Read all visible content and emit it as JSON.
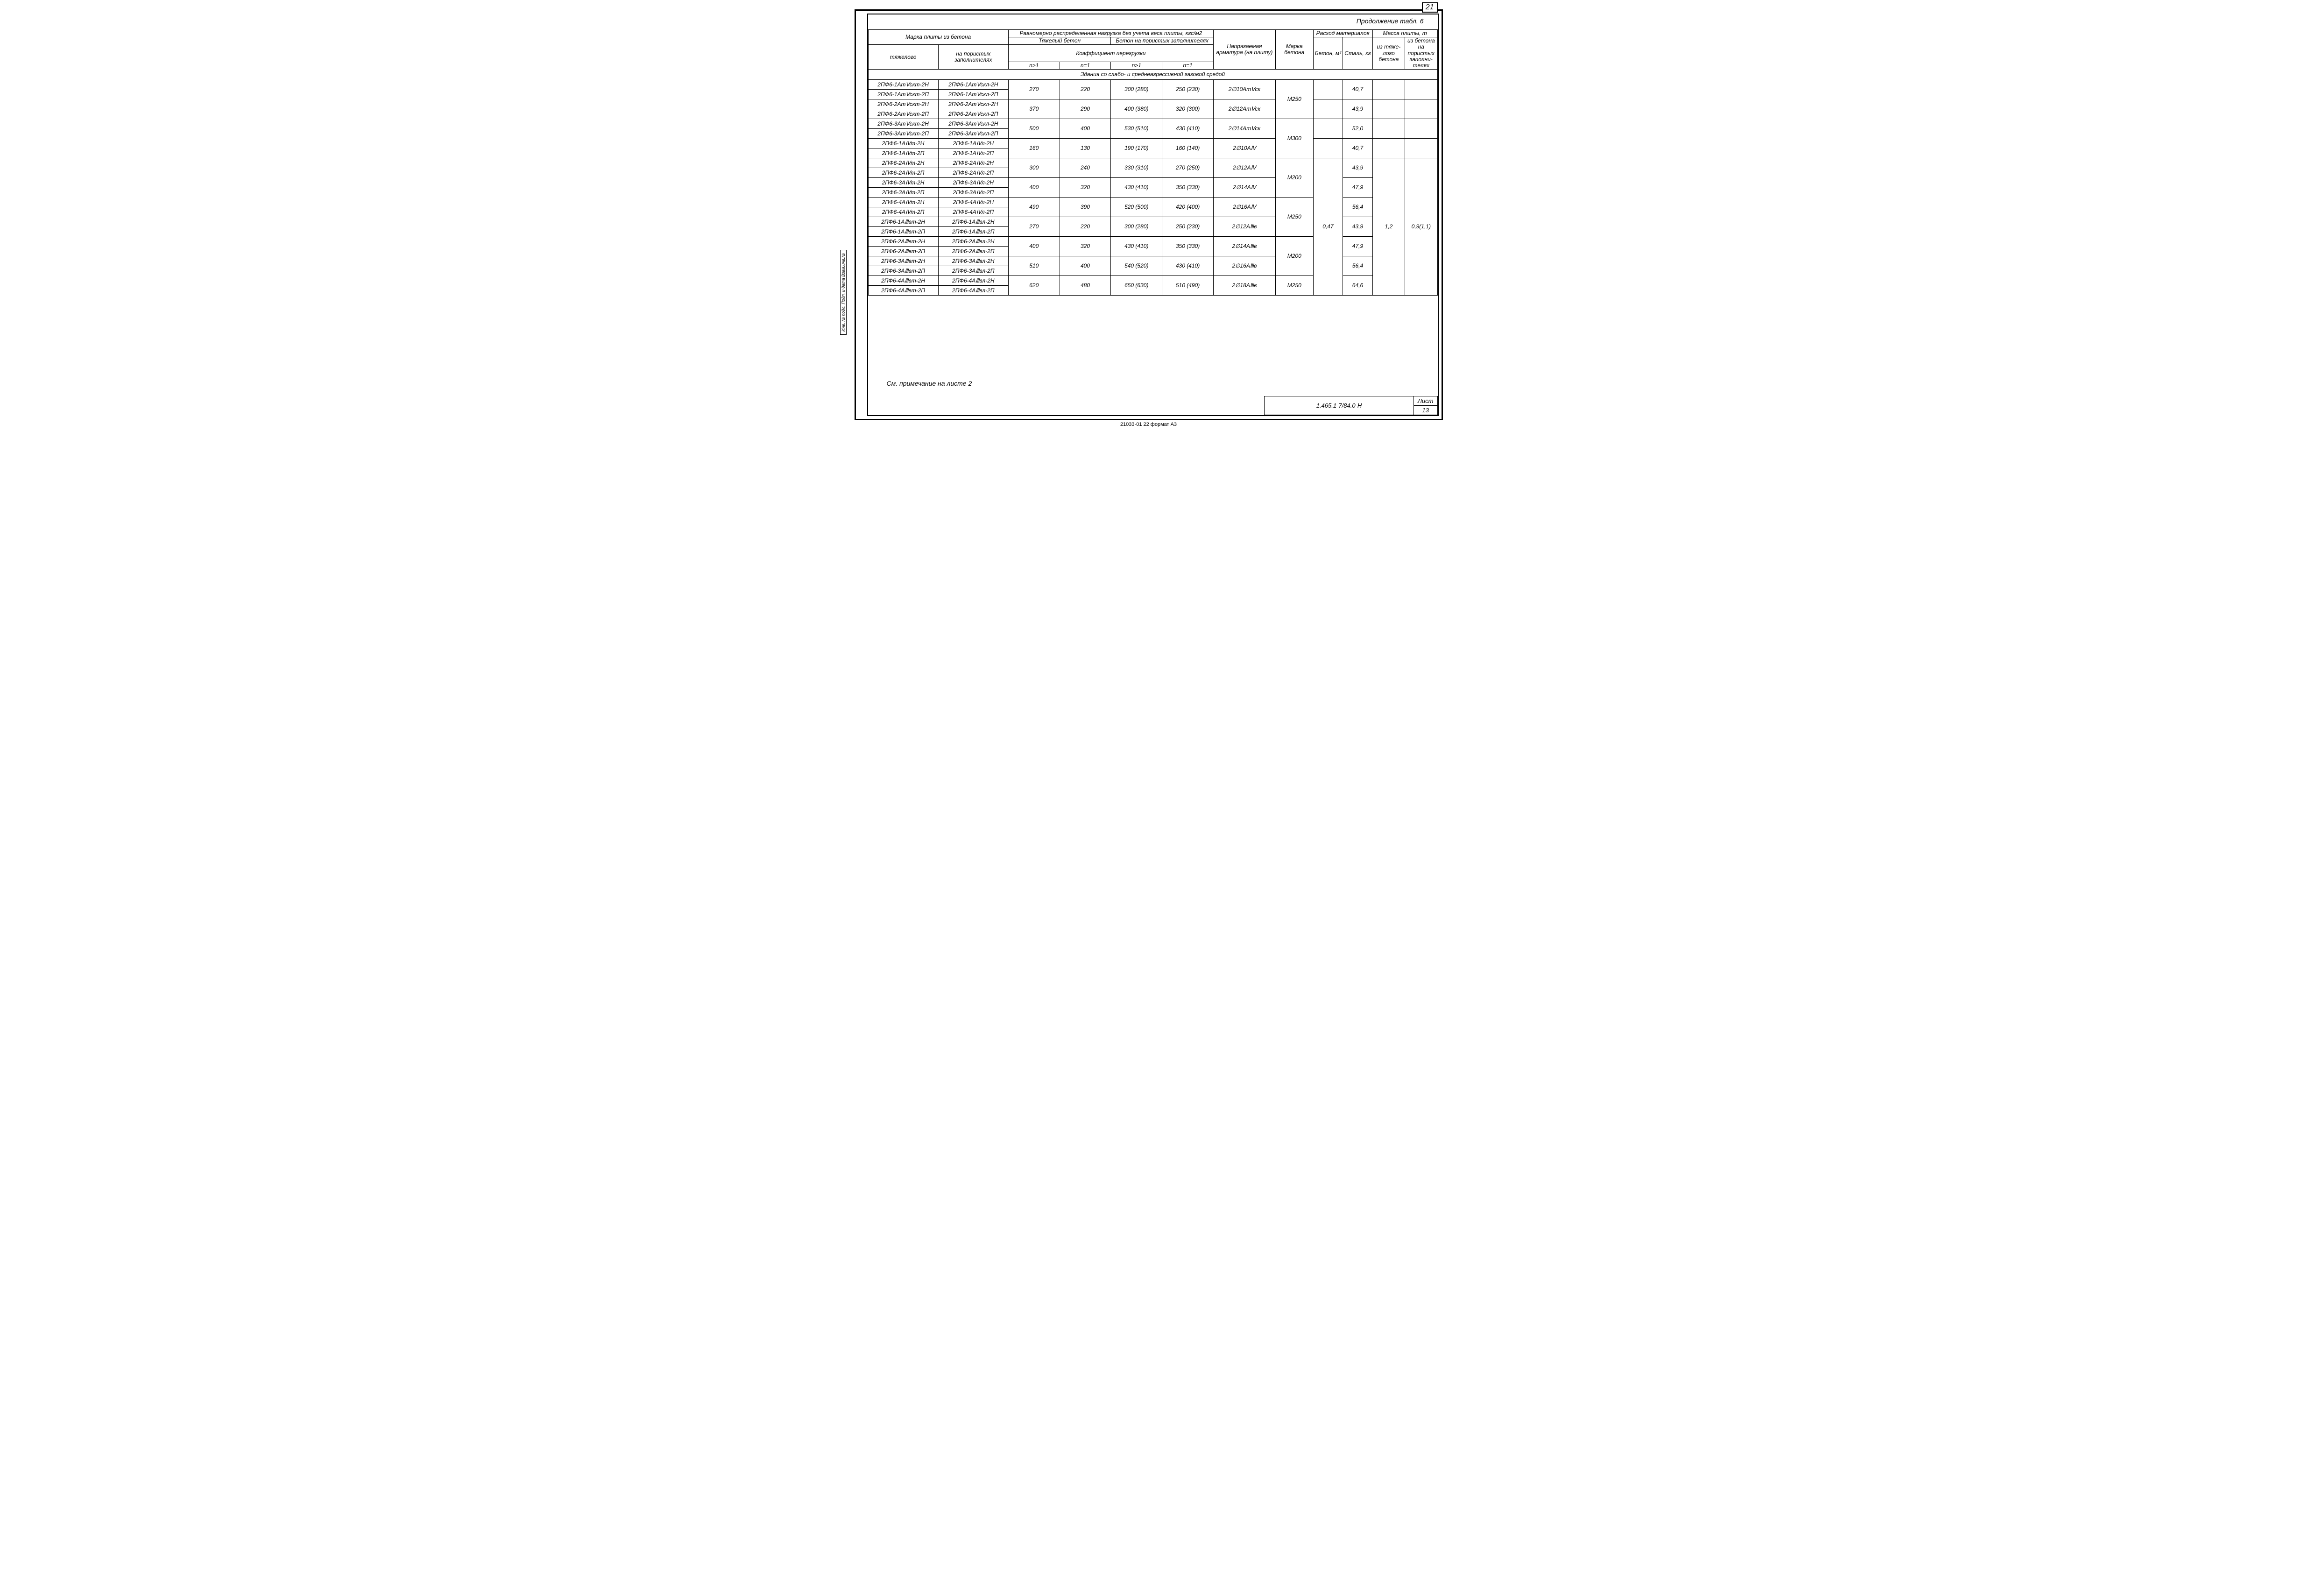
{
  "pageCorner": "21",
  "continuation": "Продолжение табл. 6",
  "header": {
    "markLabel": "Марка плиты из бетона",
    "heavy": "тяжелого",
    "porous": "на пористых заполнителях",
    "loadLabel": "Равномерно распределенная нагрузка\nбез учета веса плиты, кгс/м2",
    "heavyConcrete": "Тяжелый бетон",
    "porousConcrete": "Бетон на пористых заполнителях",
    "coef": "Коэффициент перегрузки",
    "n_gt": "n>1",
    "n_eq": "n=1",
    "rebar": "Напрягаемая арматура (на плиту)",
    "grade": "Марка бетона",
    "consumption": "Расход материалов",
    "concreteM3": "Бетон, м³",
    "steelKg": "Сталь, кг",
    "mass": "Масса плиты, т",
    "massHeavy": "из тяже-лого бетона",
    "massPorous": "из бетона на пористых заполни-телях"
  },
  "section": "Здания со слабо- и среднеагрессивной газовой средой",
  "groups": [
    {
      "rows": [
        [
          "2ПФ6-1АтⅤскт-2Н",
          "2ПФ6-1АтⅤскл-2Н"
        ],
        [
          "2ПФ6-1АтⅤскт-2П",
          "2ПФ6-1АтⅤскл-2П"
        ]
      ],
      "vals": [
        "270",
        "220",
        "300 (280)",
        "250 (230)",
        "2∅10АтⅤск",
        "М250",
        "",
        "40,7",
        "",
        ""
      ]
    },
    {
      "rows": [
        [
          "2ПФ6-2АтⅤскт-2Н",
          "2ПФ6-2АтⅤскл-2Н"
        ],
        [
          "2ПФ6-2АтⅤскт-2П",
          "2ПФ6-2АтⅤскл-2П"
        ]
      ],
      "vals": [
        "370",
        "290",
        "400 (380)",
        "320 (300)",
        "2∅12АтⅤск",
        "",
        "",
        "43,9",
        "",
        ""
      ]
    },
    {
      "rows": [
        [
          "2ПФ6-3АтⅤскт-2Н",
          "2ПФ6-3АтⅤскл-2Н"
        ],
        [
          "2ПФ6-3АтⅤскт-2П",
          "2ПФ6-3АтⅤскл-2П"
        ]
      ],
      "vals": [
        "500",
        "400",
        "530 (510)",
        "430 (410)",
        "2∅14АтⅤск",
        "М300",
        "",
        "52,0",
        "",
        ""
      ]
    },
    {
      "rows": [
        [
          "2ПФ6-1АⅣт-2Н",
          "2ПФ6-1АⅣл-2Н"
        ],
        [
          "2ПФ6-1АⅣт-2П",
          "2ПФ6-1АⅣл-2П"
        ]
      ],
      "vals": [
        "160",
        "130",
        "190 (170)",
        "160 (140)",
        "2∅10АⅣ",
        "",
        "",
        "40,7",
        "",
        ""
      ]
    },
    {
      "rows": [
        [
          "2ПФ6-2АⅣт-2Н",
          "2ПФ6-2АⅣл-2Н"
        ],
        [
          "2ПФ6-2АⅣт-2П",
          "2ПФ6-2АⅣл-2П"
        ]
      ],
      "vals": [
        "300",
        "240",
        "330 (310)",
        "270 (250)",
        "2∅12АⅣ",
        "М200",
        "0,47",
        "43,9",
        "1,2",
        "0,9(1,1)"
      ]
    },
    {
      "rows": [
        [
          "2ПФ6-3АⅣт-2Н",
          "2ПФ6-3АⅣл-2Н"
        ],
        [
          "2ПФ6-3АⅣт-2П",
          "2ПФ6-3АⅣл-2П"
        ]
      ],
      "vals": [
        "400",
        "320",
        "430 (410)",
        "350 (330)",
        "2∅14АⅣ",
        "",
        "",
        "47,9",
        "",
        ""
      ]
    },
    {
      "rows": [
        [
          "2ПФ6-4АⅣт-2Н",
          "2ПФ6-4АⅣл-2Н"
        ],
        [
          "2ПФ6-4АⅣт-2П",
          "2ПФ6-4АⅣл-2П"
        ]
      ],
      "vals": [
        "490",
        "390",
        "520 (500)",
        "420 (400)",
        "2∅16АⅣ",
        "М250",
        "",
        "56,4",
        "",
        ""
      ]
    },
    {
      "rows": [
        [
          "2ПФ6-1АⅢвт-2Н",
          "2ПФ6-1АⅢвл-2Н"
        ],
        [
          "2ПФ6-1АⅢвт-2П",
          "2ПФ6-1АⅢвл-2П"
        ]
      ],
      "vals": [
        "270",
        "220",
        "300 (280)",
        "250 (230)",
        "2∅12АⅢв",
        "",
        "",
        "43,9",
        "",
        ""
      ]
    },
    {
      "rows": [
        [
          "2ПФ6-2АⅢвт-2Н",
          "2ПФ6-2АⅢвл-2Н"
        ],
        [
          "2ПФ6-2АⅢвт-2П",
          "2ПФ6-2АⅢвл-2П"
        ]
      ],
      "vals": [
        "400",
        "320",
        "430 (410)",
        "350 (330)",
        "2∅14АⅢв",
        "М200",
        "",
        "47,9",
        "",
        ""
      ]
    },
    {
      "rows": [
        [
          "2ПФ6-3АⅢвт-2Н",
          "2ПФ6-3АⅢвл-2Н"
        ],
        [
          "2ПФ6-3АⅢвт-2П",
          "2ПФ6-3АⅢвл-2П"
        ]
      ],
      "vals": [
        "510",
        "400",
        "540 (520)",
        "430 (410)",
        "2∅16АⅢв",
        "",
        "",
        "56,4",
        "",
        ""
      ]
    },
    {
      "rows": [
        [
          "2ПФ6-4АⅢвт-2Н",
          "2ПФ6-4АⅢвл-2Н"
        ],
        [
          "2ПФ6-4АⅢвт-2П",
          "2ПФ6-4АⅢвл-2П"
        ]
      ],
      "vals": [
        "620",
        "480",
        "650 (630)",
        "510 (490)",
        "2∅18АⅢв",
        "М250",
        "",
        "64,6",
        "",
        ""
      ]
    }
  ],
  "note": "См. примечание на листе 2",
  "titleBlock": {
    "doc": "1.465.1-7/84.0-Н",
    "list": "Лист",
    "listNo": "13"
  },
  "bottomPrint": "21033-01    22    формат А3",
  "sideLabel": "Инв. № подл.  Подп. и дата  Взам.инв.№"
}
